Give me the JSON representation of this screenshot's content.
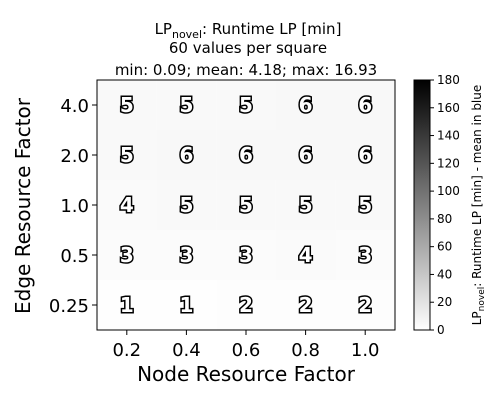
{
  "chart_data": {
    "type": "heatmap",
    "title_main": "LP",
    "title_sub": "novel",
    "title_rest": ": Runtime LP [min]",
    "subtitle": "60 values per square",
    "stats_line": "min: 0.09; mean: 4.18; max: 16.93",
    "xlabel": "Node Resource Factor",
    "ylabel": "Edge Resource Factor",
    "x_categories": [
      "0.2",
      "0.4",
      "0.6",
      "0.8",
      "1.0"
    ],
    "y_categories": [
      "0.25",
      "0.5",
      "1.0",
      "2.0",
      "4.0"
    ],
    "values": [
      [
        1,
        1,
        2,
        2,
        2
      ],
      [
        3,
        3,
        3,
        4,
        3
      ],
      [
        4,
        5,
        5,
        5,
        5
      ],
      [
        5,
        6,
        6,
        6,
        6
      ],
      [
        5,
        5,
        5,
        6,
        6
      ]
    ],
    "colorbar": {
      "range": [
        0,
        180
      ],
      "ticks": [
        "0",
        "20",
        "40",
        "60",
        "80",
        "100",
        "120",
        "140",
        "160",
        "180"
      ],
      "label_main": "LP",
      "label_sub": "novel",
      "label_rest": ": Runtime LP [min] - mean in blue",
      "colormap": "Greys",
      "low_color": "#ffffff",
      "high_color": "#000000"
    }
  }
}
